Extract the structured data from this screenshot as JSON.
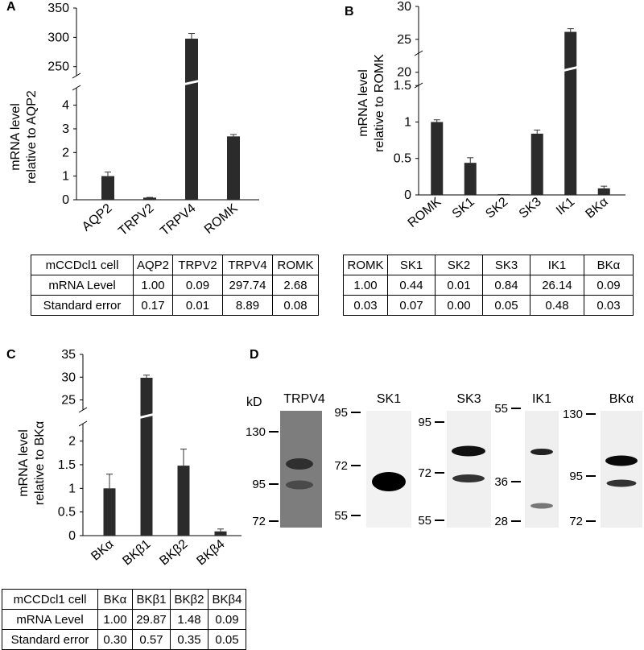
{
  "panels": {
    "A": {
      "letter": "A"
    },
    "B": {
      "letter": "B"
    },
    "C": {
      "letter": "C"
    },
    "D": {
      "letter": "D"
    }
  },
  "chart_data": [
    {
      "id": "A",
      "type": "bar",
      "broken_axis": true,
      "ylabel_line1": "mRNA level",
      "ylabel_line2": "relative to AQP2",
      "categories": [
        "AQP2",
        "TRPV2",
        "TRPV4",
        "ROMK"
      ],
      "values": [
        1.0,
        0.09,
        297.74,
        2.68
      ],
      "errors": [
        0.17,
        0.01,
        8.89,
        0.08
      ],
      "lower_ticks": [
        0,
        1,
        2,
        3,
        4
      ],
      "upper_ticks": [
        250,
        300,
        350
      ],
      "lower_range": [
        0,
        4.6
      ],
      "upper_range": [
        240,
        350
      ],
      "bar_color": "#2b2b2b"
    },
    {
      "id": "B",
      "type": "bar",
      "broken_axis": true,
      "ylabel_line1": "mRNA level",
      "ylabel_line2": "relative to ROMK",
      "categories": [
        "ROMK",
        "SK1",
        "SK2",
        "SK3",
        "IK1",
        "BKα"
      ],
      "values": [
        1.0,
        0.44,
        0.01,
        0.84,
        26.14,
        0.09
      ],
      "errors": [
        0.03,
        0.07,
        0.0,
        0.05,
        0.48,
        0.03
      ],
      "lower_ticks": [
        0,
        0.5,
        1,
        1.5
      ],
      "upper_ticks": [
        20,
        25,
        30
      ],
      "lower_range": [
        0,
        1.9
      ],
      "upper_range": [
        18.5,
        30
      ],
      "bar_color": "#2b2b2b"
    },
    {
      "id": "C",
      "type": "bar",
      "broken_axis": true,
      "ylabel_line1": "mRNA level",
      "ylabel_line2": "relative to BKα",
      "categories": [
        "BKα",
        "BKβ1",
        "BKβ2",
        "BKβ4"
      ],
      "values": [
        1.0,
        29.87,
        1.48,
        0.09
      ],
      "errors": [
        0.3,
        0.57,
        0.35,
        0.05
      ],
      "lower_ticks": [
        0,
        0.5,
        1,
        1.5,
        2
      ],
      "upper_ticks": [
        25,
        30,
        35
      ],
      "lower_range": [
        0,
        2.3
      ],
      "upper_range": [
        23.5,
        35
      ],
      "bar_color": "#2b2b2b"
    }
  ],
  "tables": {
    "A": {
      "header": [
        "mCCDcl1 cell",
        "AQP2",
        "TRPV2",
        "TRPV4",
        "ROMK"
      ],
      "rows": [
        [
          "mRNA Level",
          "1.00",
          "0.09",
          "297.74",
          "2.68"
        ],
        [
          "Standard error",
          "0.17",
          "0.01",
          "8.89",
          "0.08"
        ]
      ]
    },
    "B": {
      "header": [
        "ROMK",
        "SK1",
        "SK2",
        "SK3",
        "IK1",
        "BKα"
      ],
      "rows": [
        [
          "1.00",
          "0.44",
          "0.01",
          "0.84",
          "26.14",
          "0.09"
        ],
        [
          "0.03",
          "0.07",
          "0.00",
          "0.05",
          "0.48",
          "0.03"
        ]
      ]
    },
    "C": {
      "header": [
        "mCCDcl1 cell",
        "BKα",
        "BKβ1",
        "BKβ2",
        "BKβ4"
      ],
      "rows": [
        [
          "mRNA Level",
          "1.00",
          "29.87",
          "1.48",
          "0.09"
        ],
        [
          "Standard error",
          "0.30",
          "0.57",
          "0.35",
          "0.05"
        ]
      ]
    }
  },
  "blots": {
    "kd_label": "kD",
    "lanes": [
      {
        "name": "TRPV4",
        "markers": [
          "130",
          "95",
          "72"
        ],
        "bg": "#7d7d7d"
      },
      {
        "name": "SK1",
        "markers": [
          "95",
          "72",
          "55"
        ],
        "bg": "#f2f2f2"
      },
      {
        "name": "SK3",
        "markers": [
          "95",
          "72",
          "55"
        ],
        "bg": "#f0f0f0"
      },
      {
        "name": "IK1",
        "markers": [
          "55",
          "36",
          "28"
        ],
        "bg": "#efefef"
      },
      {
        "name": "BKα",
        "markers": [
          "130",
          "95",
          "72"
        ],
        "bg": "#efefef"
      }
    ]
  }
}
